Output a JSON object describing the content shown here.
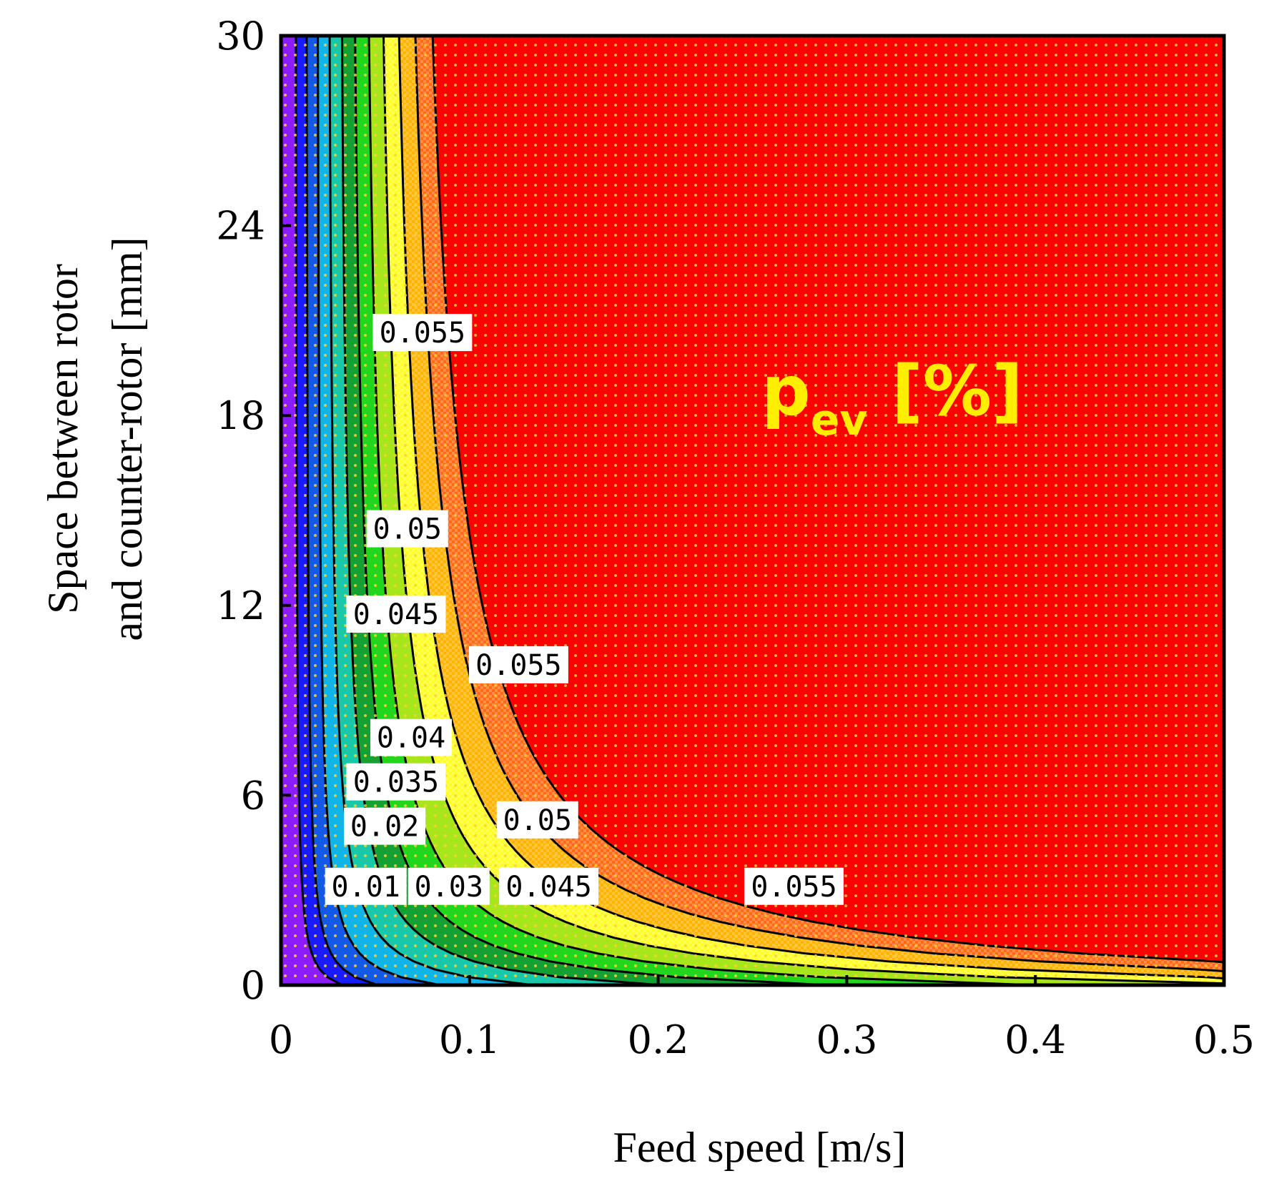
{
  "chart_data": {
    "type": "contour",
    "title": "",
    "annotation": "p_ev [%]",
    "annotation_parts": {
      "main": "p",
      "sub": "ev",
      "unit": " [%]"
    },
    "xlabel": "Feed speed [m/s]",
    "ylabel_line1": "Space between rotor",
    "ylabel_line2": "and counter-rotor [mm]",
    "xlim": [
      0,
      0.5
    ],
    "ylim": [
      0,
      30
    ],
    "x_ticks": [
      0,
      0.1,
      0.2,
      0.3,
      0.4,
      0.5
    ],
    "x_tick_labels": [
      "0",
      "0.1",
      "0.2",
      "0.3",
      "0.4",
      "0.5"
    ],
    "y_ticks": [
      0,
      6,
      12,
      18,
      24,
      30
    ],
    "y_tick_labels": [
      "0",
      "6",
      "12",
      "18",
      "24",
      "30"
    ],
    "grid": false,
    "levels": [
      0.01,
      0.015,
      0.02,
      0.025,
      0.03,
      0.035,
      0.04,
      0.045,
      0.05,
      0.055
    ],
    "bands": [
      {
        "level": 0.005,
        "color": "#8a1cff"
      },
      {
        "level": 0.01,
        "color": "#1a1aff"
      },
      {
        "level": 0.015,
        "color": "#1459e6"
      },
      {
        "level": 0.02,
        "color": "#10b4e6"
      },
      {
        "level": 0.025,
        "color": "#18c8a8"
      },
      {
        "level": 0.03,
        "color": "#14a032"
      },
      {
        "level": 0.035,
        "color": "#22d61e"
      },
      {
        "level": 0.04,
        "color": "#a6e61a"
      },
      {
        "level": 0.045,
        "color": "#ffff26"
      },
      {
        "level": 0.05,
        "color": "#ffb300"
      },
      {
        "level": 0.055,
        "color": "#ff6a14"
      },
      {
        "level": 0.06,
        "color": "#ff0000"
      }
    ],
    "contour_labels": [
      {
        "text": "0.055",
        "x": 0.075,
        "y": 20.6
      },
      {
        "text": "0.05",
        "x": 0.067,
        "y": 14.4
      },
      {
        "text": "0.045",
        "x": 0.061,
        "y": 11.7
      },
      {
        "text": "0.055",
        "x": 0.126,
        "y": 10.1
      },
      {
        "text": "0.04",
        "x": 0.069,
        "y": 7.8
      },
      {
        "text": "0.035",
        "x": 0.061,
        "y": 6.4
      },
      {
        "text": "0.02",
        "x": 0.055,
        "y": 5.0
      },
      {
        "text": "0.05",
        "x": 0.136,
        "y": 5.2
      },
      {
        "text": "0.01",
        "x": 0.045,
        "y": 3.1
      },
      {
        "text": "0.03",
        "x": 0.089,
        "y": 3.1
      },
      {
        "text": "0.045",
        "x": 0.142,
        "y": 3.1
      },
      {
        "text": "0.055",
        "x": 0.272,
        "y": 3.1
      }
    ]
  }
}
